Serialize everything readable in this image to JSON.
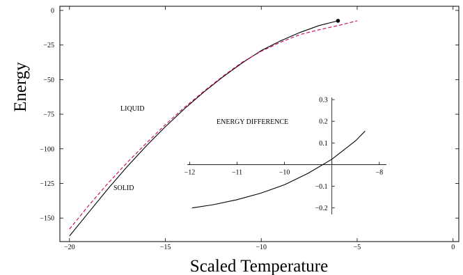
{
  "chart_data": [
    {
      "type": "line",
      "xlabel": "Scaled Temperature",
      "ylabel": "Energy",
      "xlim": [
        -20.5,
        0.3
      ],
      "ylim": [
        -167,
        3
      ],
      "xticks": [
        -20,
        -15,
        -10,
        -5,
        0
      ],
      "yticks": [
        0,
        -25,
        -50,
        -75,
        -100,
        -125,
        -150
      ],
      "grid": false,
      "annotations": [
        "LIQUID",
        "SOLID"
      ],
      "series": [
        {
          "color": "#000000",
          "dash": "solid",
          "x": [
            -20,
            -19,
            -18,
            -17,
            -16,
            -15,
            -14,
            -13,
            -12,
            -11,
            -10,
            -9,
            -8,
            -7,
            -6
          ],
          "y": [
            -163,
            -146,
            -129,
            -113,
            -98,
            -84,
            -71,
            -59,
            -48,
            -38,
            -29,
            -22,
            -16,
            -11,
            -7.5
          ]
        },
        {
          "color": "#cc0066",
          "dash": "dashed",
          "x": [
            -20,
            -19,
            -18,
            -17,
            -16,
            -15,
            -14,
            -13,
            -12,
            -11,
            -10,
            -9,
            -8,
            -7,
            -6,
            -5
          ],
          "y": [
            -158,
            -141,
            -125,
            -110,
            -96,
            -82.5,
            -70,
            -58.5,
            -47.5,
            -37.5,
            -29.5,
            -23,
            -17.5,
            -14,
            -11,
            -7.5
          ]
        },
        {
          "color": "#000000",
          "dash": "none",
          "marker": "dot",
          "x": [
            -6
          ],
          "y": [
            -7.5
          ]
        }
      ]
    },
    {
      "type": "line",
      "title": "ENERGY DIFFERENCE",
      "xlim": [
        -12.05,
        -7.85
      ],
      "ylim": [
        -0.23,
        0.31
      ],
      "xticks": [
        -12,
        -11,
        -10,
        -9,
        -8
      ],
      "xtick_labels": [
        "-12",
        "-11",
        "-10",
        "",
        "-8"
      ],
      "yticks": [
        0.3,
        0.2,
        0.1,
        -0.1,
        -0.2
      ],
      "grid": false,
      "series": [
        {
          "color": "#000000",
          "x": [
            -11.95,
            -11.5,
            -11,
            -10.5,
            -10,
            -9.5,
            -9,
            -8.5,
            -8.3
          ],
          "y": [
            -0.2,
            -0.185,
            -0.162,
            -0.132,
            -0.093,
            -0.04,
            0.025,
            0.11,
            0.155
          ]
        }
      ]
    }
  ]
}
